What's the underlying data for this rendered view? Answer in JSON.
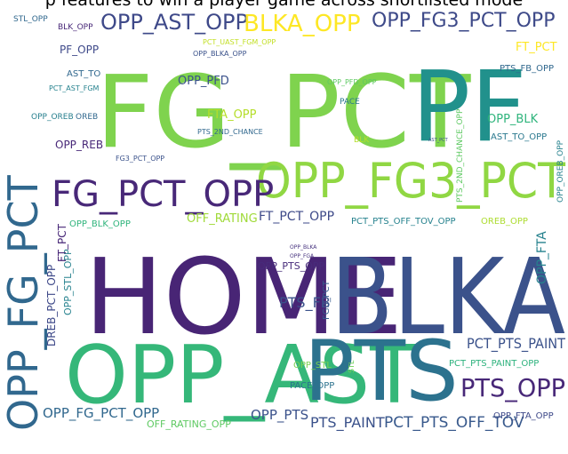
{
  "title": "p features to win a player game across shortlisted mode",
  "words": [
    {
      "text": "FG_PCT",
      "color": "#7fd34e",
      "size": 112,
      "rotate": 0
    },
    {
      "text": "HOME",
      "color": "#482575",
      "size": 118,
      "rotate": 0
    },
    {
      "text": "BLKA",
      "color": "#3b528b",
      "size": 118,
      "rotate": 0
    },
    {
      "text": "PF",
      "color": "#21918c",
      "size": 110,
      "rotate": 0
    },
    {
      "text": "OPP_AST",
      "color": "#35b779",
      "size": 90,
      "rotate": 0
    },
    {
      "text": "PTS",
      "color": "#2c728e",
      "size": 94,
      "rotate": 0
    },
    {
      "text": "OPP_FG3_PCT",
      "color": "#90d743",
      "size": 54,
      "rotate": 0
    },
    {
      "text": "OPP_FG_PCT",
      "color": "#31688e",
      "size": 46,
      "rotate": -90
    },
    {
      "text": "FG_PCT_OPP",
      "color": "#482878",
      "size": 40,
      "rotate": 0
    },
    {
      "text": "OPP_AST_OPP",
      "color": "#3e4989",
      "size": 24,
      "rotate": 0
    },
    {
      "text": "BLKA_OPP",
      "color": "#fde725",
      "size": 26,
      "rotate": 0
    },
    {
      "text": "OPP_FG3_PCT_OPP",
      "color": "#3e4a89",
      "size": 22,
      "rotate": 0
    },
    {
      "text": "PTS_OPP",
      "color": "#482878",
      "size": 28,
      "rotate": 0
    },
    {
      "text": "PTS_PAINT",
      "color": "#3b528b",
      "size": 16,
      "rotate": 0
    },
    {
      "text": "PCT_PTS_PAINT",
      "color": "#3b528b",
      "size": 16,
      "rotate": 0
    },
    {
      "text": "PCT_PTS_OFF_TOV",
      "color": "#38598c",
      "size": 17,
      "rotate": 0
    },
    {
      "text": "OPP_FG_PCT_OPP",
      "color": "#31688e",
      "size": 15,
      "rotate": 0
    },
    {
      "text": "OPP_PTS",
      "color": "#3b528b",
      "size": 15,
      "rotate": 0
    },
    {
      "text": "OFF_RATING_OPP",
      "color": "#5ec962",
      "size": 11,
      "rotate": 0
    },
    {
      "text": "PTS_FB",
      "color": "#3b528b",
      "size": 16,
      "rotate": 0
    },
    {
      "text": "FT_PCT_OPP",
      "color": "#3e4a89",
      "size": 14,
      "rotate": 0
    },
    {
      "text": "OFF_RATING",
      "color": "#a0da39",
      "size": 13,
      "rotate": 0
    },
    {
      "text": "OPP_BLK_OPP",
      "color": "#2fb47c",
      "size": 10,
      "rotate": 0
    },
    {
      "text": "PCT_PTS_OFF_TOV_OPP",
      "color": "#26828e",
      "size": 10,
      "rotate": 0
    },
    {
      "text": "OREB_OPP",
      "color": "#addc30",
      "size": 10,
      "rotate": 0
    },
    {
      "text": "OPP_FTA",
      "color": "#26828e",
      "size": 14,
      "rotate": -90
    },
    {
      "text": "OPP_PTS_OPP",
      "color": "#472c7a",
      "size": 11,
      "rotate": 0
    },
    {
      "text": "OPP_BLKA",
      "color": "#46327e",
      "size": 6,
      "rotate": 0
    },
    {
      "text": "OPP_FGA",
      "color": "#46327e",
      "size": 6,
      "rotate": 0
    },
    {
      "text": "FG3_PCT",
      "color": "#365c8d",
      "size": 10,
      "rotate": -90
    },
    {
      "text": "DREB_PCT_OPP",
      "color": "#3e4989",
      "size": 12,
      "rotate": -90
    },
    {
      "text": "OPP_STL_OPP",
      "color": "#26828e",
      "size": 11,
      "rotate": -90
    },
    {
      "text": "FT_PCT",
      "color": "#482878",
      "size": 12,
      "rotate": -90
    },
    {
      "text": "OPP_STL",
      "color": "#7ad151",
      "size": 10,
      "rotate": 0
    },
    {
      "text": "PACE_OPP",
      "color": "#2c728e",
      "size": 10,
      "rotate": 0
    },
    {
      "text": "STL",
      "color": "#6ece58",
      "size": 8,
      "rotate": -90
    },
    {
      "text": "PCT_PTS_PAINT_OPP",
      "color": "#2db27d",
      "size": 10,
      "rotate": 0
    },
    {
      "text": "OPP_FTA_OPP",
      "color": "#3e4989",
      "size": 10,
      "rotate": 0
    },
    {
      "text": "STL_OPP",
      "color": "#31688e",
      "size": 9,
      "rotate": 0
    },
    {
      "text": "BLK_OPP",
      "color": "#482878",
      "size": 9,
      "rotate": 0
    },
    {
      "text": "PF_OPP",
      "color": "#3e4989",
      "size": 12,
      "rotate": 0
    },
    {
      "text": "AST_TO",
      "color": "#31688e",
      "size": 10,
      "rotate": 0
    },
    {
      "text": "PCT_AST_FGM",
      "color": "#26828e",
      "size": 8,
      "rotate": 0
    },
    {
      "text": "OPP_OREB",
      "color": "#277f8e",
      "size": 9,
      "rotate": 0
    },
    {
      "text": "OREB",
      "color": "#31688e",
      "size": 9,
      "rotate": 0
    },
    {
      "text": "OPP_REB",
      "color": "#482878",
      "size": 12,
      "rotate": 0
    },
    {
      "text": "FG3_PCT_OPP",
      "color": "#3b528b",
      "size": 8,
      "rotate": 0
    },
    {
      "text": "OPP_PFD",
      "color": "#3b528b",
      "size": 13,
      "rotate": 0
    },
    {
      "text": "PCT_UAST_FGM_OPP",
      "color": "#c2df23",
      "size": 8,
      "rotate": 0
    },
    {
      "text": "OPP_BLKA_OPP",
      "color": "#3b528b",
      "size": 8,
      "rotate": 0
    },
    {
      "text": "FTA_OPP",
      "color": "#b5de2b",
      "size": 13,
      "rotate": 0
    },
    {
      "text": "PTS_2ND_CHANCE",
      "color": "#31688e",
      "size": 8,
      "rotate": 0
    },
    {
      "text": "OPP_PFD_OPP",
      "color": "#5ec962",
      "size": 8,
      "rotate": 0
    },
    {
      "text": "PACE",
      "color": "#2a788e",
      "size": 9,
      "rotate": 0
    },
    {
      "text": "BLK",
      "color": "#b5de2b",
      "size": 9,
      "rotate": 0
    },
    {
      "text": "AST_PCT",
      "color": "#3b528b",
      "size": 5,
      "rotate": 0
    },
    {
      "text": "FT_PCT",
      "color": "#fde725",
      "size": 13,
      "rotate": 0
    },
    {
      "text": "PTS_FB_OPP",
      "color": "#31688e",
      "size": 10,
      "rotate": 0
    },
    {
      "text": "OPP_BLK",
      "color": "#2fb47c",
      "size": 13,
      "rotate": 0
    },
    {
      "text": "AST_TO_OPP",
      "color": "#2a788e",
      "size": 10,
      "rotate": 0
    },
    {
      "text": "PTS_2ND_CHANCE_OPP",
      "color": "#5ec962",
      "size": 9,
      "rotate": -90
    },
    {
      "text": "OPP_OREB_OPP",
      "color": "#26828e",
      "size": 9,
      "rotate": -90
    }
  ]
}
